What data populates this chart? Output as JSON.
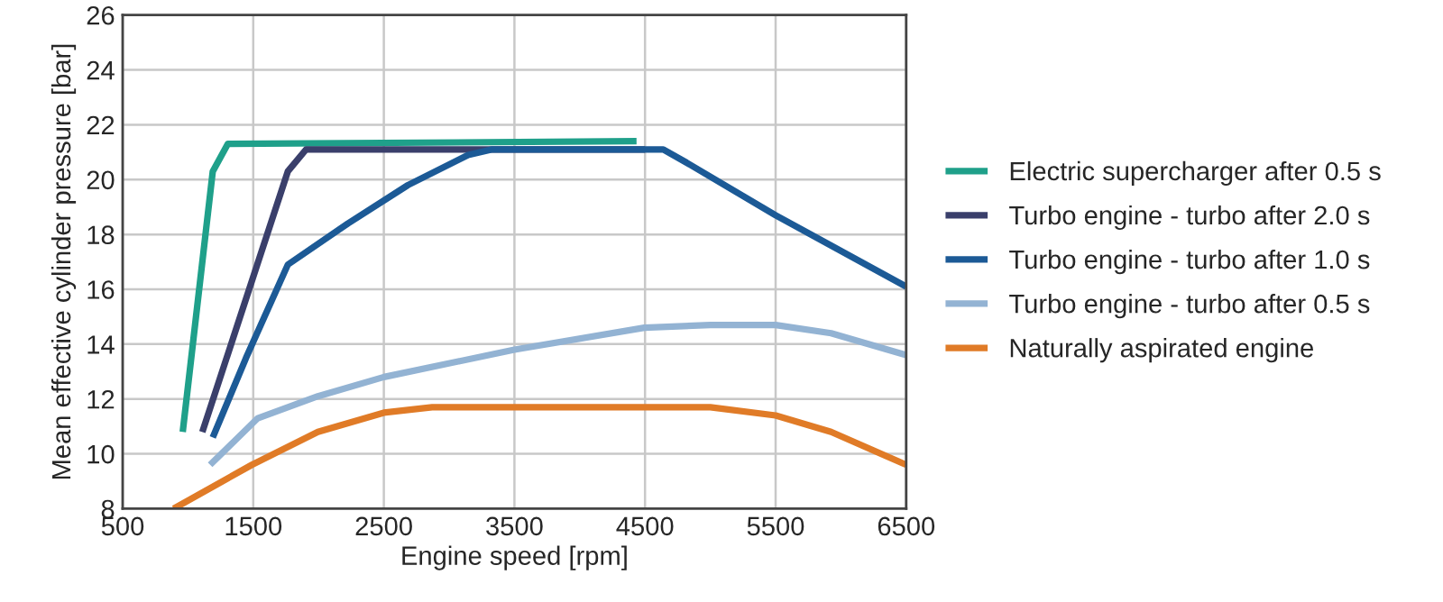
{
  "chart_data": {
    "type": "line",
    "xlabel": "Engine speed [rpm]",
    "ylabel": "Mean effective cylinder pressure [bar]",
    "xlim": [
      500,
      6500
    ],
    "xticks": [
      500,
      1500,
      2500,
      3500,
      4500,
      5500,
      6500
    ],
    "ylim": [
      8,
      26
    ],
    "yticks": [
      8,
      10,
      12,
      14,
      16,
      18,
      20,
      22,
      24,
      26
    ],
    "grid": true,
    "legend": "right",
    "marker": "none",
    "line_style": "solid",
    "series": [
      {
        "name": "Electric supercharger after 0.5 s",
        "color": "#1fa08a",
        "x": [
          960,
          1190,
          1305,
          4435
        ],
        "values": [
          10.8,
          20.3,
          21.3,
          21.4
        ]
      },
      {
        "name": "Turbo engine - turbo after 2.0 s",
        "color": "#3a3f6b",
        "x": [
          1110,
          1765,
          1905,
          4500
        ],
        "values": [
          10.8,
          20.3,
          21.1,
          21.1
        ]
      },
      {
        "name": "Turbo engine - turbo after 1.0 s",
        "color": "#1c5a96",
        "x": [
          1190,
          1445,
          1765,
          2225,
          2685,
          3145,
          3330,
          4480,
          4640,
          4825,
          5500,
          6500
        ],
        "values": [
          10.6,
          13.5,
          16.9,
          18.4,
          19.8,
          20.9,
          21.1,
          21.1,
          21.1,
          20.6,
          18.7,
          16.1
        ]
      },
      {
        "name": "Turbo engine - turbo after 0.5 s",
        "color": "#93b3d3",
        "x": [
          1170,
          1535,
          1995,
          2500,
          3500,
          4495,
          5000,
          5500,
          5925,
          6500
        ],
        "values": [
          9.6,
          11.3,
          12.1,
          12.8,
          13.8,
          14.6,
          14.7,
          14.7,
          14.4,
          13.6
        ]
      },
      {
        "name": "Naturally aspirated engine",
        "color": "#e07b27",
        "x": [
          890,
          1490,
          1995,
          2500,
          2870,
          4495,
          5000,
          5500,
          5925,
          6500
        ],
        "values": [
          8.0,
          9.6,
          10.8,
          11.5,
          11.7,
          11.7,
          11.7,
          11.4,
          10.8,
          9.6
        ]
      }
    ]
  }
}
